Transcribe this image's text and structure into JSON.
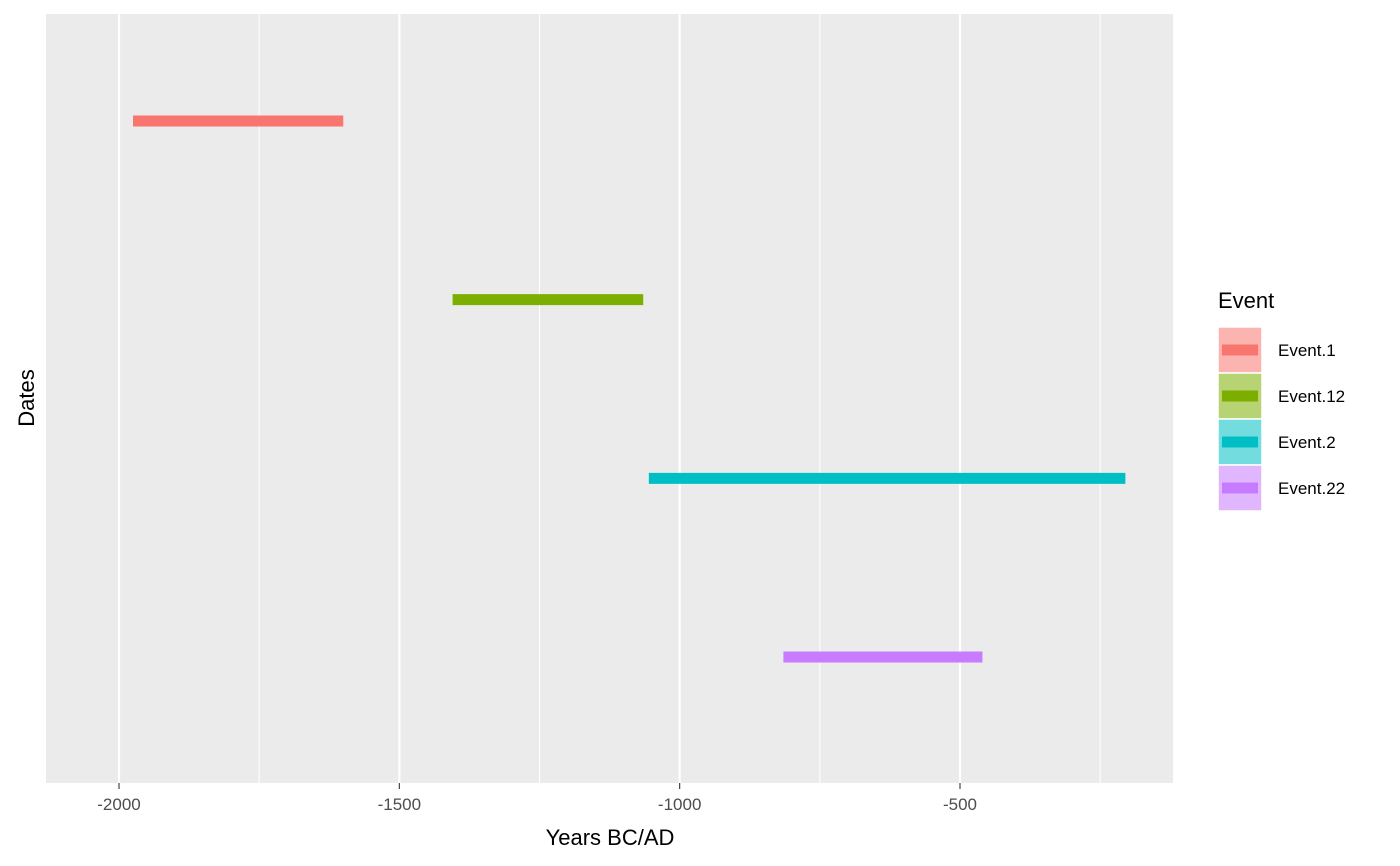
{
  "chart_data": {
    "type": "bar",
    "orientation": "horizontal-range",
    "xlabel": "Years BC/AD",
    "ylabel": "Dates",
    "xlim": [
      -2125,
      -125
    ],
    "x_ticks": [
      -2000,
      -1500,
      -1000,
      -500
    ],
    "x_tick_labels": [
      "-2000",
      "-1500",
      "-1000",
      "-500"
    ],
    "grid": true,
    "legend": {
      "title": "Event",
      "position": "right"
    },
    "series": [
      {
        "name": "Event.1",
        "start": -1975,
        "end": -1600,
        "color": "#F8766D"
      },
      {
        "name": "Event.12",
        "start": -1405,
        "end": -1065,
        "color": "#7CAE00"
      },
      {
        "name": "Event.2",
        "start": -1055,
        "end": -205,
        "color": "#00BFC4"
      },
      {
        "name": "Event.22",
        "start": -815,
        "end": -460,
        "color": "#C77CFF"
      }
    ]
  }
}
